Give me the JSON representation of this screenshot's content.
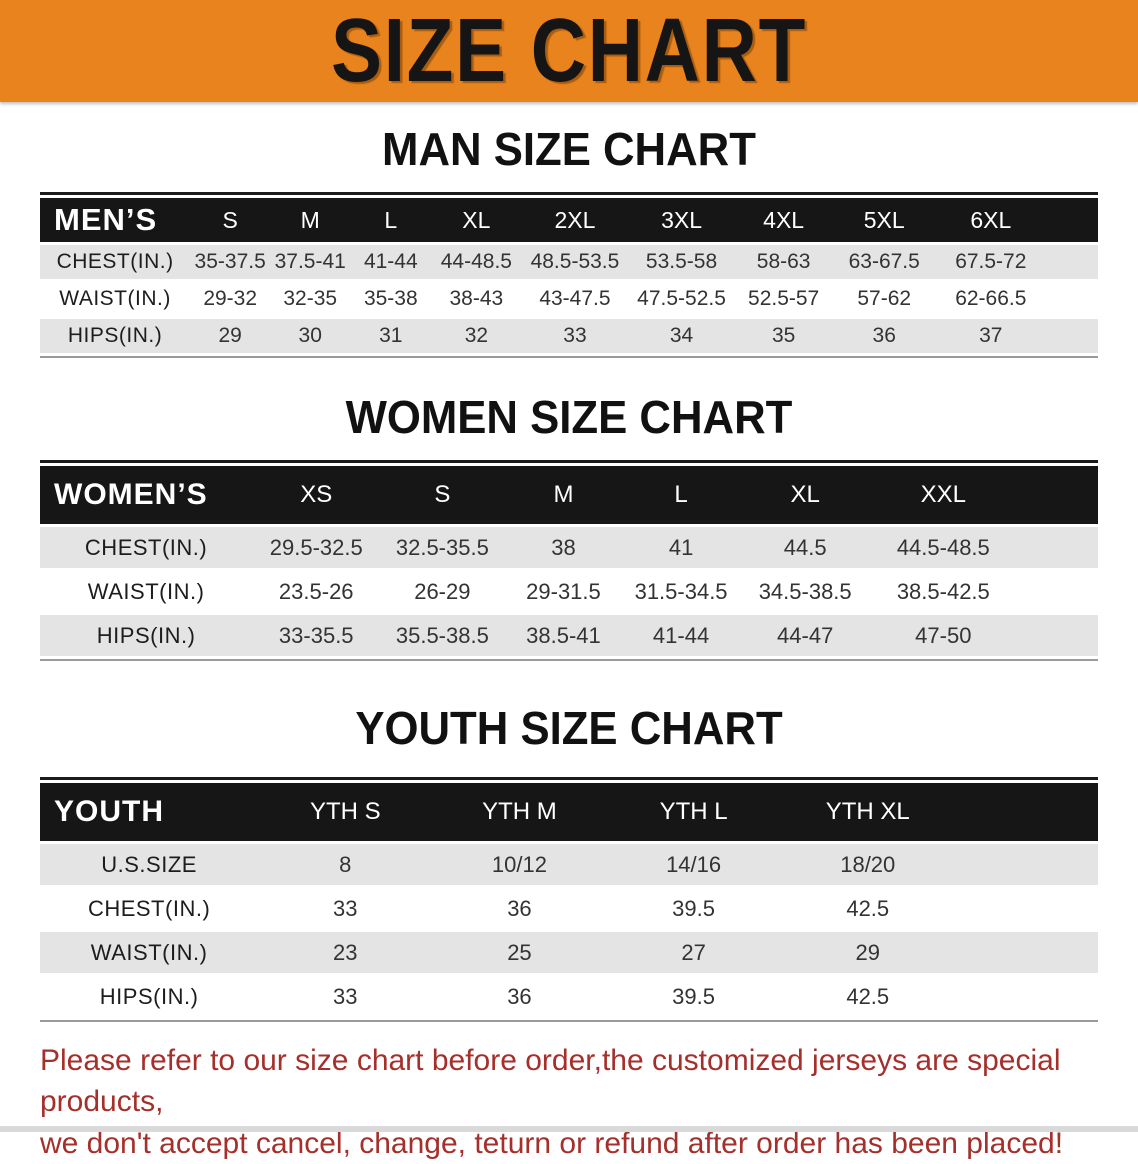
{
  "banner": {
    "title": "SIZE CHART"
  },
  "colors": {
    "banner_bg": "#E8831D",
    "header_bg": "#161616",
    "row_alt_bg": "#E4E4E4",
    "notice_text": "#A52F2B"
  },
  "sections": [
    {
      "heading": "MAN SIZE CHART",
      "corner_label": "MEN’S",
      "sizes": [
        "S",
        "M",
        "L",
        "XL",
        "2XL",
        "3XL",
        "4XL",
        "5XL",
        "6XL"
      ],
      "rows": [
        {
          "label": "CHEST(IN.)",
          "values": [
            "35-37.5",
            "37.5-41",
            "41-44",
            "44-48.5",
            "48.5-53.5",
            "53.5-58",
            "58-63",
            "63-67.5",
            "67.5-72"
          ]
        },
        {
          "label": "WAIST(IN.)",
          "values": [
            "29-32",
            "32-35",
            "35-38",
            "38-43",
            "43-47.5",
            "47.5-52.5",
            "52.5-57",
            "57-62",
            "62-66.5"
          ]
        },
        {
          "label": "HIPS(IN.)",
          "values": [
            "29",
            "30",
            "31",
            "32",
            "33",
            "34",
            "35",
            "36",
            "37"
          ]
        }
      ]
    },
    {
      "heading": "WOMEN SIZE CHART",
      "corner_label": "WOMEN’S",
      "sizes": [
        "XS",
        "S",
        "M",
        "L",
        "XL",
        "XXL"
      ],
      "rows": [
        {
          "label": "CHEST(IN.)",
          "values": [
            "29.5-32.5",
            "32.5-35.5",
            "38",
            "41",
            "44.5",
            "44.5-48.5"
          ]
        },
        {
          "label": "WAIST(IN.)",
          "values": [
            "23.5-26",
            "26-29",
            "29-31.5",
            "31.5-34.5",
            "34.5-38.5",
            "38.5-42.5"
          ]
        },
        {
          "label": "HIPS(IN.)",
          "values": [
            "33-35.5",
            "35.5-38.5",
            "38.5-41",
            "41-44",
            "44-47",
            "47-50"
          ]
        }
      ]
    },
    {
      "heading": "YOUTH SIZE CHART",
      "corner_label": "YOUTH",
      "sizes": [
        "YTH S",
        "YTH M",
        "YTH L",
        "YTH XL"
      ],
      "rows": [
        {
          "label": "U.S.SIZE",
          "values": [
            "8",
            "10/12",
            "14/16",
            "18/20"
          ]
        },
        {
          "label": "CHEST(IN.)",
          "values": [
            "33",
            "36",
            "39.5",
            "42.5"
          ]
        },
        {
          "label": "WAIST(IN.)",
          "values": [
            "23",
            "25",
            "27",
            "29"
          ]
        },
        {
          "label": "HIPS(IN.)",
          "values": [
            "33",
            "36",
            "39.5",
            "42.5"
          ]
        }
      ]
    }
  ],
  "footer": {
    "line1": "Please refer to our size chart before order,the customized jerseys are special products,",
    "line2": "we don't accept cancel, change, teturn or refund after order has been placed!"
  }
}
